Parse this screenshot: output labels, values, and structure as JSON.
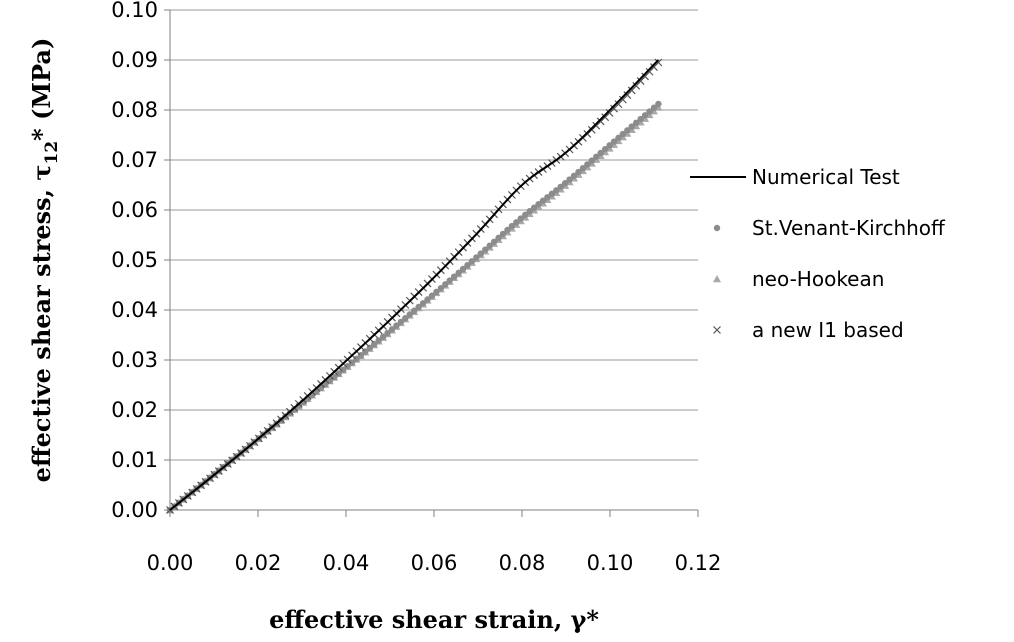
{
  "chart_data": {
    "type": "line",
    "title": "",
    "xlabel": "effective shear strain, γ*",
    "ylabel": "effective shear stress, τ",
    "ylabel_sub": "12",
    "ylabel_tail": "* (MPa)",
    "xlim": [
      0,
      0.12
    ],
    "ylim": [
      0,
      0.1
    ],
    "x_ticks": [
      "0.00",
      "0.02",
      "0.04",
      "0.06",
      "0.08",
      "0.10",
      "0.12"
    ],
    "y_ticks": [
      "0.00",
      "0.01",
      "0.02",
      "0.03",
      "0.04",
      "0.05",
      "0.06",
      "0.07",
      "0.08",
      "0.09",
      "0.10"
    ],
    "grid": "horizontal",
    "legend_position": "right",
    "colors": {
      "numerical": "#000000",
      "stvenant": "#8c8c8c",
      "neohookean": "#a8a8a8",
      "newI1": "#555555",
      "grid": "#9a9a9a",
      "axis": "#808080"
    },
    "series": [
      {
        "name": "Numerical Test",
        "marker": "line",
        "x": [
          0,
          0.01,
          0.02,
          0.03,
          0.04,
          0.05,
          0.06,
          0.07,
          0.08,
          0.09,
          0.1,
          0.111
        ],
        "y": [
          0,
          0.007,
          0.0142,
          0.0218,
          0.0298,
          0.038,
          0.0465,
          0.0555,
          0.065,
          0.0715,
          0.08,
          0.09
        ]
      },
      {
        "name": "St.Venant-Kirchhoff",
        "marker": "dot",
        "x": [
          0,
          0.01,
          0.02,
          0.03,
          0.04,
          0.05,
          0.06,
          0.07,
          0.08,
          0.09,
          0.1,
          0.111
        ],
        "y": [
          0,
          0.0071,
          0.0142,
          0.0214,
          0.0285,
          0.0358,
          0.0432,
          0.0508,
          0.0585,
          0.0655,
          0.073,
          0.0812
        ]
      },
      {
        "name": "neo-Hookean",
        "marker": "triangle",
        "x": [
          0,
          0.01,
          0.02,
          0.03,
          0.04,
          0.05,
          0.06,
          0.07,
          0.08,
          0.09,
          0.1,
          0.111
        ],
        "y": [
          0,
          0.007,
          0.0141,
          0.0213,
          0.0284,
          0.0356,
          0.043,
          0.0505,
          0.058,
          0.065,
          0.0724,
          0.0805
        ]
      },
      {
        "name": "a new I1 based",
        "marker": "x",
        "x": [
          0,
          0.01,
          0.02,
          0.03,
          0.04,
          0.05,
          0.06,
          0.07,
          0.08,
          0.09,
          0.1,
          0.111
        ],
        "y": [
          0,
          0.007,
          0.0142,
          0.0218,
          0.0298,
          0.0381,
          0.0466,
          0.0556,
          0.065,
          0.0715,
          0.0795,
          0.0895
        ]
      }
    ]
  }
}
